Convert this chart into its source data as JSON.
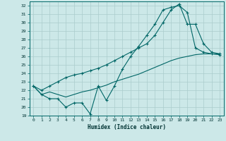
{
  "xlabel": "Humidex (Indice chaleur)",
  "bg_color": "#cce8e8",
  "grid_color": "#aacccc",
  "line_color": "#006666",
  "xlim": [
    -0.5,
    23.5
  ],
  "ylim": [
    19,
    32.5
  ],
  "xticks": [
    0,
    1,
    2,
    3,
    4,
    5,
    6,
    7,
    8,
    9,
    10,
    11,
    12,
    13,
    14,
    15,
    16,
    17,
    18,
    19,
    20,
    21,
    22,
    23
  ],
  "yticks": [
    19,
    20,
    21,
    22,
    23,
    24,
    25,
    26,
    27,
    28,
    29,
    30,
    31,
    32
  ],
  "line1_x": [
    0,
    1,
    2,
    3,
    4,
    5,
    6,
    7,
    8,
    9,
    10,
    11,
    12,
    13,
    14,
    15,
    16,
    17,
    18,
    19,
    20,
    21,
    22,
    23
  ],
  "line1_y": [
    22.5,
    21.5,
    21.0,
    21.0,
    20.0,
    20.5,
    20.5,
    19.2,
    22.5,
    20.8,
    22.5,
    24.5,
    26.0,
    27.2,
    28.5,
    29.8,
    31.5,
    31.8,
    32.0,
    31.2,
    27.0,
    26.5,
    26.3,
    26.2
  ],
  "line2_x": [
    0,
    1,
    2,
    3,
    4,
    5,
    6,
    7,
    8,
    9,
    10,
    11,
    12,
    13,
    14,
    15,
    16,
    17,
    18,
    19,
    20,
    21,
    22,
    23
  ],
  "line2_y": [
    22.5,
    21.5,
    21.8,
    21.5,
    21.2,
    21.5,
    21.8,
    22.0,
    22.3,
    22.6,
    23.0,
    23.3,
    23.6,
    23.9,
    24.3,
    24.7,
    25.1,
    25.5,
    25.8,
    26.0,
    26.2,
    26.3,
    26.3,
    26.3
  ],
  "line3_x": [
    0,
    1,
    2,
    3,
    4,
    5,
    6,
    7,
    8,
    9,
    10,
    11,
    12,
    13,
    14,
    15,
    16,
    17,
    18,
    19,
    20,
    21,
    22,
    23
  ],
  "line3_y": [
    22.5,
    22.0,
    22.5,
    23.0,
    23.5,
    23.8,
    24.0,
    24.3,
    24.6,
    25.0,
    25.5,
    26.0,
    26.5,
    27.0,
    27.5,
    28.5,
    30.0,
    31.5,
    32.2,
    29.8,
    29.8,
    27.5,
    26.5,
    26.3
  ]
}
